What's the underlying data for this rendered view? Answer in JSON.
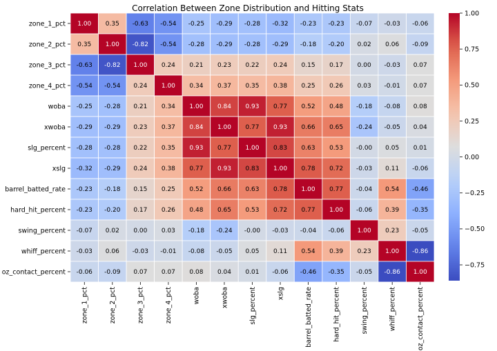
{
  "chart_data": {
    "type": "heatmap",
    "title": "Correlation Between Zone Distribution and Hitting Stats",
    "row_labels": [
      "zone_1_pct",
      "zone_2_pct",
      "zone_3_pct",
      "zone_4_pct",
      "woba",
      "xwoba",
      "slg_percent",
      "xslg",
      "barrel_batted_rate",
      "hard_hit_percent",
      "swing_percent",
      "whiff_percent",
      "oz_contact_percent"
    ],
    "col_labels": [
      "zone_1_pct",
      "zone_2_pct",
      "zone_3_pct",
      "zone_4_pct",
      "woba",
      "xwoba",
      "slg_percent",
      "xslg",
      "barrel_batted_rate",
      "hard_hit_percent",
      "swing_percent",
      "whiff_percent",
      "oz_contact_percent"
    ],
    "values": [
      [
        1.0,
        0.35,
        -0.63,
        -0.54,
        -0.25,
        -0.29,
        -0.28,
        -0.32,
        -0.23,
        -0.23,
        -0.07,
        -0.03,
        -0.06
      ],
      [
        0.35,
        1.0,
        -0.82,
        -0.54,
        -0.28,
        -0.29,
        -0.28,
        -0.29,
        -0.18,
        -0.2,
        0.02,
        0.06,
        -0.09
      ],
      [
        -0.63,
        -0.82,
        1.0,
        0.24,
        0.21,
        0.23,
        0.22,
        0.24,
        0.15,
        0.17,
        0.0,
        -0.03,
        0.07
      ],
      [
        -0.54,
        -0.54,
        0.24,
        1.0,
        0.34,
        0.37,
        0.35,
        0.38,
        0.25,
        0.26,
        0.03,
        -0.01,
        0.07
      ],
      [
        -0.25,
        -0.28,
        0.21,
        0.34,
        1.0,
        0.84,
        0.93,
        0.77,
        0.52,
        0.48,
        -0.18,
        -0.08,
        0.08
      ],
      [
        -0.29,
        -0.29,
        0.23,
        0.37,
        0.84,
        1.0,
        0.77,
        0.93,
        0.66,
        0.65,
        -0.24,
        -0.05,
        0.04
      ],
      [
        -0.28,
        -0.28,
        0.22,
        0.35,
        0.93,
        0.77,
        1.0,
        0.83,
        0.63,
        0.53,
        -0.0,
        0.05,
        0.01
      ],
      [
        -0.32,
        -0.29,
        0.24,
        0.38,
        0.77,
        0.93,
        0.83,
        1.0,
        0.78,
        0.72,
        -0.03,
        0.11,
        -0.06
      ],
      [
        -0.23,
        -0.18,
        0.15,
        0.25,
        0.52,
        0.66,
        0.63,
        0.78,
        1.0,
        0.77,
        -0.04,
        0.54,
        -0.46
      ],
      [
        -0.23,
        -0.2,
        0.17,
        0.26,
        0.48,
        0.65,
        0.53,
        0.72,
        0.77,
        1.0,
        -0.06,
        0.39,
        -0.35
      ],
      [
        -0.07,
        0.02,
        0.0,
        0.03,
        -0.18,
        -0.24,
        -0.0,
        -0.03,
        -0.04,
        -0.06,
        1.0,
        0.23,
        -0.05
      ],
      [
        -0.03,
        0.06,
        -0.03,
        -0.01,
        -0.08,
        -0.05,
        0.05,
        0.11,
        0.54,
        0.39,
        0.23,
        1.0,
        -0.86
      ],
      [
        -0.06,
        -0.09,
        0.07,
        0.07,
        0.08,
        0.04,
        0.01,
        -0.06,
        -0.46,
        -0.35,
        -0.05,
        -0.86,
        1.0
      ]
    ],
    "value_labels": [
      [
        "1.00",
        "0.35",
        "-0.63",
        "-0.54",
        "-0.25",
        "-0.29",
        "-0.28",
        "-0.32",
        "-0.23",
        "-0.23",
        "-0.07",
        "-0.03",
        "-0.06"
      ],
      [
        "0.35",
        "1.00",
        "-0.82",
        "-0.54",
        "-0.28",
        "-0.29",
        "-0.28",
        "-0.29",
        "-0.18",
        "-0.20",
        "0.02",
        "0.06",
        "-0.09"
      ],
      [
        "-0.63",
        "-0.82",
        "1.00",
        "0.24",
        "0.21",
        "0.23",
        "0.22",
        "0.24",
        "0.15",
        "0.17",
        "0.00",
        "-0.03",
        "0.07"
      ],
      [
        "-0.54",
        "-0.54",
        "0.24",
        "1.00",
        "0.34",
        "0.37",
        "0.35",
        "0.38",
        "0.25",
        "0.26",
        "0.03",
        "-0.01",
        "0.07"
      ],
      [
        "-0.25",
        "-0.28",
        "0.21",
        "0.34",
        "1.00",
        "0.84",
        "0.93",
        "0.77",
        "0.52",
        "0.48",
        "-0.18",
        "-0.08",
        "0.08"
      ],
      [
        "-0.29",
        "-0.29",
        "0.23",
        "0.37",
        "0.84",
        "1.00",
        "0.77",
        "0.93",
        "0.66",
        "0.65",
        "-0.24",
        "-0.05",
        "0.04"
      ],
      [
        "-0.28",
        "-0.28",
        "0.22",
        "0.35",
        "0.93",
        "0.77",
        "1.00",
        "0.83",
        "0.63",
        "0.53",
        "-0.00",
        "0.05",
        "0.01"
      ],
      [
        "-0.32",
        "-0.29",
        "0.24",
        "0.38",
        "0.77",
        "0.93",
        "0.83",
        "1.00",
        "0.78",
        "0.72",
        "-0.03",
        "0.11",
        "-0.06"
      ],
      [
        "-0.23",
        "-0.18",
        "0.15",
        "0.25",
        "0.52",
        "0.66",
        "0.63",
        "0.78",
        "1.00",
        "0.77",
        "-0.04",
        "0.54",
        "-0.46"
      ],
      [
        "-0.23",
        "-0.20",
        "0.17",
        "0.26",
        "0.48",
        "0.65",
        "0.53",
        "0.72",
        "0.77",
        "1.00",
        "-0.06",
        "0.39",
        "-0.35"
      ],
      [
        "-0.07",
        "0.02",
        "0.00",
        "0.03",
        "-0.18",
        "-0.24",
        "-0.00",
        "-0.03",
        "-0.04",
        "-0.06",
        "1.00",
        "0.23",
        "-0.05"
      ],
      [
        "-0.03",
        "0.06",
        "-0.03",
        "-0.01",
        "-0.08",
        "-0.05",
        "0.05",
        "0.11",
        "0.54",
        "0.39",
        "0.23",
        "1.00",
        "-0.86"
      ],
      [
        "-0.06",
        "-0.09",
        "0.07",
        "0.07",
        "0.08",
        "0.04",
        "0.01",
        "-0.06",
        "-0.46",
        "-0.35",
        "-0.05",
        "-0.86",
        "1.00"
      ]
    ],
    "colormap": "coolwarm",
    "vmin": -0.86,
    "vmax": 1.0,
    "colorbar": {
      "ticks": [
        1.0,
        0.75,
        0.5,
        0.25,
        0.0,
        -0.25,
        -0.5,
        -0.75
      ],
      "tick_labels": [
        "1.00",
        "0.75",
        "0.50",
        "0.25",
        "0.00",
        "−0.25",
        "−0.50",
        "−0.75"
      ]
    }
  }
}
